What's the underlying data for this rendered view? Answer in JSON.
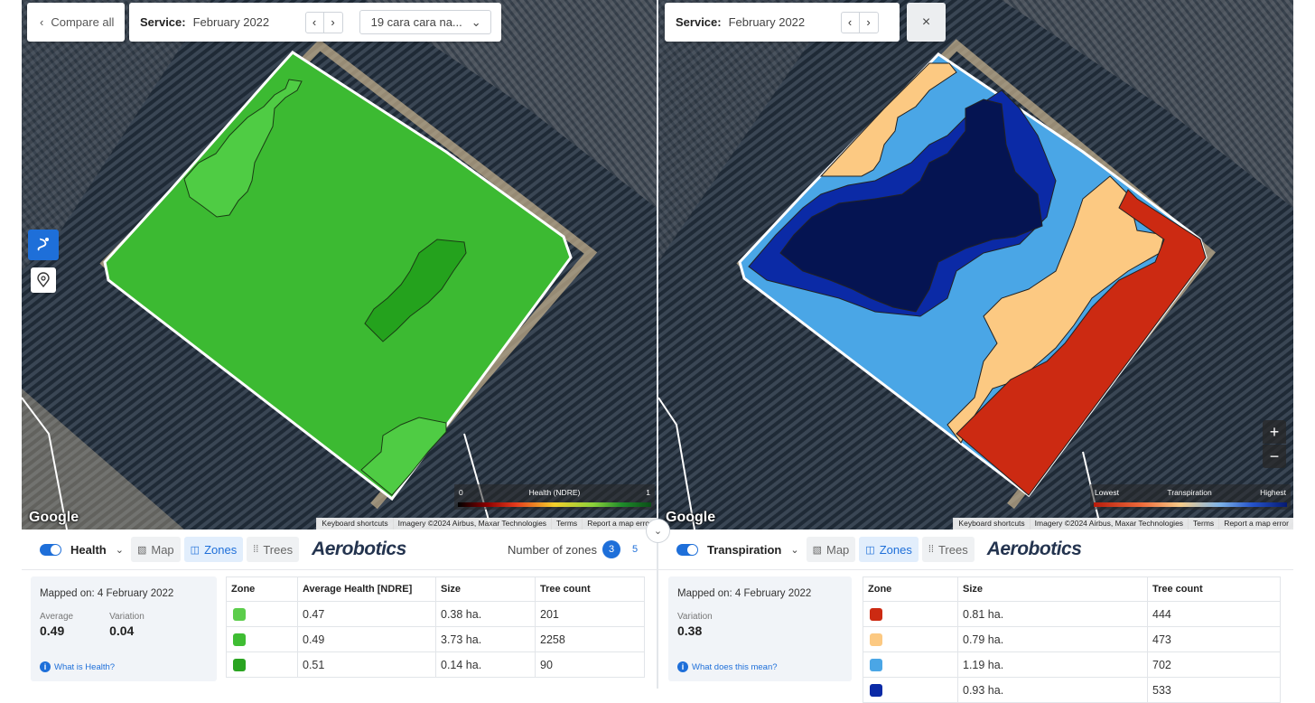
{
  "header": {
    "compare_all": "Compare all",
    "service_label": "Service:",
    "left_date": "February 2022",
    "right_date": "February 2022",
    "block_select": "19 cara cara na...",
    "close": "×"
  },
  "map": {
    "google": "Google",
    "attribution": [
      "Keyboard shortcuts",
      "Imagery ©2024 Airbus, Maxar Technologies",
      "Terms",
      "Report a map error"
    ],
    "health_legend": {
      "min": "0",
      "label": "Health (NDRE)",
      "max": "1"
    },
    "transp_legend": {
      "min": "Lowest",
      "label": "Transpiration",
      "max": "Highest"
    },
    "zoom_in": "+",
    "zoom_out": "−"
  },
  "left_panel": {
    "layer": "Health",
    "tabs": [
      "Map",
      "Zones",
      "Trees"
    ],
    "brand": "Aerobotics",
    "zones_label": "Number of zones",
    "zones_options": [
      "3",
      "5"
    ],
    "mapped_on": "Mapped on: 4 February 2022",
    "average_label": "Average",
    "average_value": "0.49",
    "variation_label": "Variation",
    "variation_value": "0.04",
    "help": "What is Health?",
    "columns": [
      "Zone",
      "Average Health [NDRE]",
      "Size",
      "Tree count"
    ],
    "rows": [
      {
        "color": "#5ccd4b",
        "avg": "0.47",
        "size": "0.38 ha.",
        "count": "201"
      },
      {
        "color": "#3fbd33",
        "avg": "0.49",
        "size": "3.73 ha.",
        "count": "2258"
      },
      {
        "color": "#2aa421",
        "avg": "0.51",
        "size": "0.14 ha.",
        "count": "90"
      }
    ]
  },
  "right_panel": {
    "layer": "Transpiration",
    "tabs": [
      "Map",
      "Zones",
      "Trees"
    ],
    "brand": "Aerobotics",
    "mapped_on": "Mapped on: 4 February 2022",
    "variation_label": "Variation",
    "variation_value": "0.38",
    "help": "What does this mean?",
    "columns": [
      "Zone",
      "Size",
      "Tree count"
    ],
    "rows": [
      {
        "color": "#cc2a12",
        "size": "0.81 ha.",
        "count": "444"
      },
      {
        "color": "#fcc982",
        "size": "0.79 ha.",
        "count": "473"
      },
      {
        "color": "#4aa6e6",
        "size": "1.19 ha.",
        "count": "702"
      },
      {
        "color": "#0b2aa6",
        "size": "0.93 ha.",
        "count": "533"
      }
    ]
  }
}
